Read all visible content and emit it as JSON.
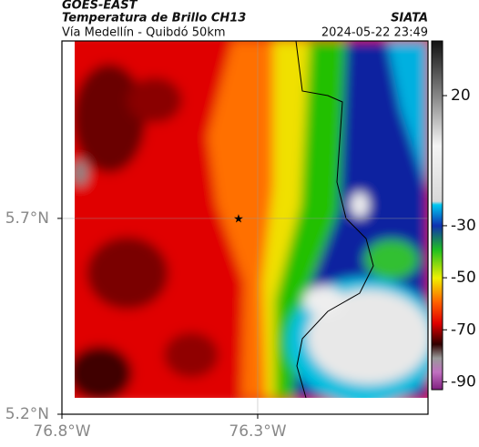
{
  "header": {
    "source": "GOES-EAST",
    "title": "Temperatura de Brillo CH13",
    "subtitle": "Vía Medellín - Quibdó 50km",
    "org": "SIATA",
    "datetime": "2024-05-22 23:49"
  },
  "map": {
    "xlim": [
      -76.8,
      -75.865
    ],
    "ylim": [
      5.2,
      6.153
    ],
    "xticks": [
      {
        "value": -76.8,
        "label": "76.8°W"
      },
      {
        "value": -76.3,
        "label": "76.3°W"
      }
    ],
    "yticks": [
      {
        "value": 5.2,
        "label": "5.2°N"
      },
      {
        "value": 5.7,
        "label": "5.7°N"
      }
    ]
  },
  "colorbar": {
    "lim": [
      -93,
      41
    ],
    "ticks": [
      20,
      -30,
      -50,
      -70,
      -90
    ]
  }
}
